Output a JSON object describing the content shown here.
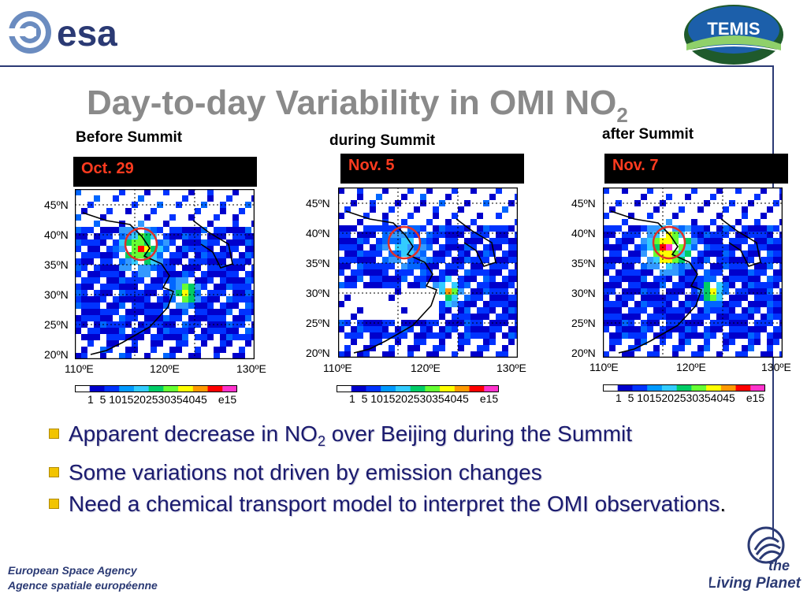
{
  "header": {
    "esa_logo_text": "esa",
    "temis_logo_text": "TEMIS"
  },
  "title": {
    "main": "Day-to-day Variability in OMI NO",
    "subscript": "2"
  },
  "panels": [
    {
      "label": "Before Summit",
      "date": "Oct. 29",
      "lat_ticks": [
        "45ºN",
        "40ºN",
        "35ºN",
        "30ºN",
        "25ºN",
        "20ºN"
      ],
      "lon_ticks": [
        "110ºE",
        "120ºE",
        "130ºE"
      ],
      "colorbar": {
        "values": "1  5 1015202530354045",
        "unit": "e15"
      }
    },
    {
      "label": "during Summit",
      "date": "Nov. 5",
      "lat_ticks": [
        "45ºN",
        "40ºN",
        "35ºN",
        "30ºN",
        "25ºN",
        "20ºN"
      ],
      "lon_ticks": [
        "110ºE",
        "120ºE",
        "130ºE"
      ],
      "colorbar": {
        "values": "1  5 1015202530354045",
        "unit": "e15"
      }
    },
    {
      "label": "after Summit",
      "date": "Nov. 7",
      "lat_ticks": [
        "45ºN",
        "40ºN",
        "35ºN",
        "30ºN",
        "25ºN",
        "20ºN"
      ],
      "lon_ticks": [
        "110ºE",
        "120ºE",
        "130ºE"
      ],
      "colorbar": {
        "values": "1  5 1015202530354045",
        "unit": "e15"
      }
    }
  ],
  "colorbar_colors": [
    "#ffffff",
    "#0000cc",
    "#0033ff",
    "#0099ff",
    "#33ccff",
    "#00cc66",
    "#66ff33",
    "#ffff00",
    "#ff9900",
    "#ff0000",
    "#ff33cc"
  ],
  "bullets": [
    {
      "pre": "Apparent decrease in NO",
      "sub": "2",
      "post": " over Beijing during the Summit"
    },
    {
      "pre": "Some variations not driven by emission changes",
      "sub": "",
      "post": ""
    },
    {
      "pre": "Need a chemical transport model to interpret the OMI observations",
      "sub": "",
      "post": "."
    }
  ],
  "footer": {
    "esa_line1": "European Space Agency",
    "esa_line2": "Agence spatiale européenne",
    "living_planet_1": "the",
    "living_planet_2": "Living Planet"
  },
  "colors": {
    "accent": "#2b3a74",
    "title_gray": "#8a8a8a",
    "date_red": "#ff3b1f",
    "circle_red": "#e0302a",
    "bullet_yellow": "#f2c400"
  }
}
